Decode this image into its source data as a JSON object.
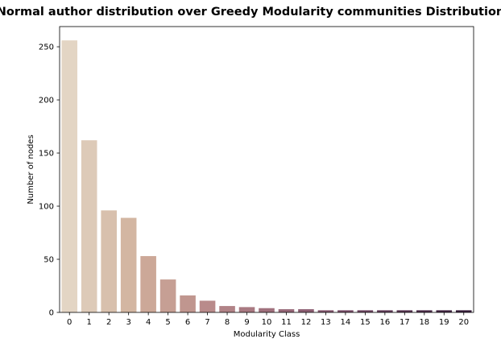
{
  "chart_data": {
    "type": "bar",
    "title": "Normal author distribution over Greedy Modularity communities Distribution",
    "xlabel": "Modularity Class",
    "ylabel": "Number of nodes",
    "categories": [
      "0",
      "1",
      "2",
      "3",
      "4",
      "5",
      "6",
      "7",
      "8",
      "9",
      "10",
      "11",
      "12",
      "13",
      "14",
      "15",
      "16",
      "17",
      "18",
      "19",
      "20"
    ],
    "values": [
      256,
      162,
      96,
      89,
      53,
      31,
      16,
      11,
      6,
      5,
      4,
      3,
      3,
      2,
      2,
      2,
      2,
      2,
      2,
      2,
      2
    ],
    "ylim": [
      0,
      269
    ],
    "yticks": [
      0,
      50,
      100,
      150,
      200,
      250
    ],
    "grid": false,
    "colors": [
      "#e3d5c4",
      "#ddcab8",
      "#d8c0ad",
      "#d3b6a2",
      "#cca898",
      "#c69f94",
      "#c0968f",
      "#b98b8b",
      "#b18387",
      "#a97a82",
      "#a0717d",
      "#976878",
      "#8d5f73",
      "#83566d",
      "#784d67",
      "#6d4560",
      "#623c59",
      "#573451",
      "#4d2d4a",
      "#432643",
      "#391f3c"
    ]
  }
}
